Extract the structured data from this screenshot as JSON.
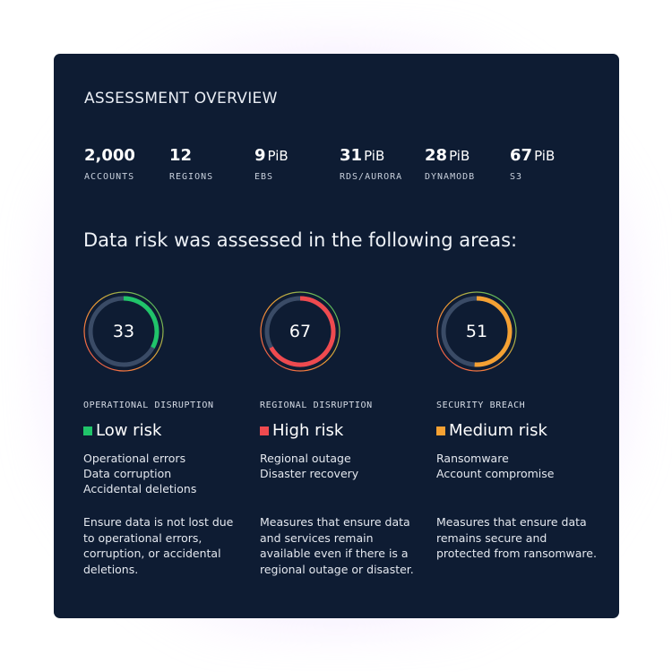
{
  "title": "ASSESSMENT OVERVIEW",
  "stats": [
    {
      "value": "2,000",
      "unit": "",
      "label": "ACCOUNTS"
    },
    {
      "value": "12",
      "unit": "",
      "label": "REGIONS"
    },
    {
      "value": "9",
      "unit": "PiB",
      "label": "EBS"
    },
    {
      "value": "31",
      "unit": "PiB",
      "label": "RDS/AURORA"
    },
    {
      "value": "28",
      "unit": "PiB",
      "label": "DYNAMODB"
    },
    {
      "value": "67",
      "unit": "PiB",
      "label": "S3"
    }
  ],
  "headline": "Data risk was assessed in the following areas:",
  "areas": [
    {
      "score": "33",
      "score_value": 33,
      "label": "OPERATIONAL DISRUPTION",
      "risk": "Low risk",
      "color": "#20c46a",
      "items": [
        "Operational errors",
        "Data corruption",
        "Accidental deletions"
      ],
      "description": "Ensure data is not lost due to operational errors, corruption, or accidental deletions."
    },
    {
      "score": "67",
      "score_value": 67,
      "label": "REGIONAL DISRUPTION",
      "risk": "High risk",
      "color": "#ef4a4f",
      "items": [
        "Regional outage",
        "Disaster recovery"
      ],
      "description": "Measures that ensure data and services remain available even if there is a regional outage or disaster."
    },
    {
      "score": "51",
      "score_value": 51,
      "label": "SECURITY BREACH",
      "risk": "Medium risk",
      "color": "#f5a133",
      "items": [
        "Ransomware",
        "Account compromise"
      ],
      "description": "Measures that ensure data remains secure and protected from ransomware."
    }
  ],
  "colors": {
    "card_background": "#0e1c33",
    "gauge_track": "#3a4b66",
    "outer_ring_gradient": [
      "#ef4a4f",
      "#f5a133",
      "#20c46a"
    ]
  }
}
